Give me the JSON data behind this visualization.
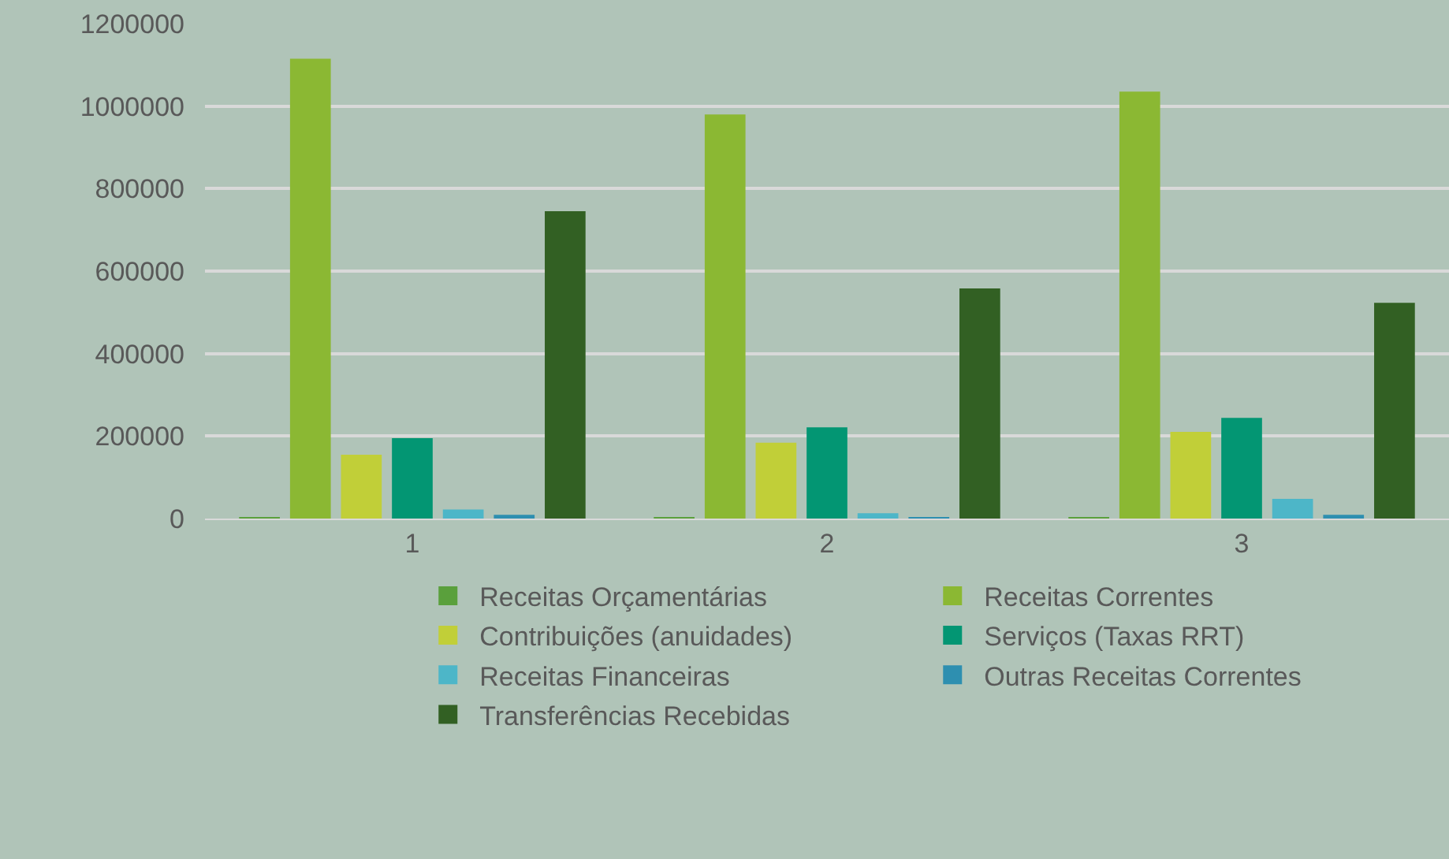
{
  "chart_data": {
    "type": "bar",
    "categories": [
      "1",
      "2",
      "3"
    ],
    "series": [
      {
        "name": "Receitas Orçamentárias",
        "color": "#5aa03c",
        "values": [
          1000,
          1000,
          1000
        ]
      },
      {
        "name": "Receitas Correntes",
        "color": "#8bb833",
        "values": [
          1115000,
          980000,
          1035000
        ]
      },
      {
        "name": "Contribuições (anuidades)",
        "color": "#c1cf38",
        "values": [
          155000,
          184000,
          210000
        ]
      },
      {
        "name": "Serviços (Taxas RRT)",
        "color": "#039673",
        "values": [
          195000,
          221000,
          244000
        ]
      },
      {
        "name": "Receitas Financeiras",
        "color": "#4db6c8",
        "values": [
          22000,
          13000,
          48000
        ]
      },
      {
        "name": "Outras Receitas Correntes",
        "color": "#2e8fb0",
        "values": [
          9000,
          3000,
          9000
        ]
      },
      {
        "name": "Transferências Recebidas",
        "color": "#326023",
        "values": [
          745000,
          558000,
          523000
        ]
      }
    ],
    "ylim": [
      0,
      1200000
    ],
    "yticks": [
      0,
      200000,
      400000,
      600000,
      800000,
      1000000,
      1200000
    ],
    "grid": "y",
    "legend": "bottom"
  }
}
